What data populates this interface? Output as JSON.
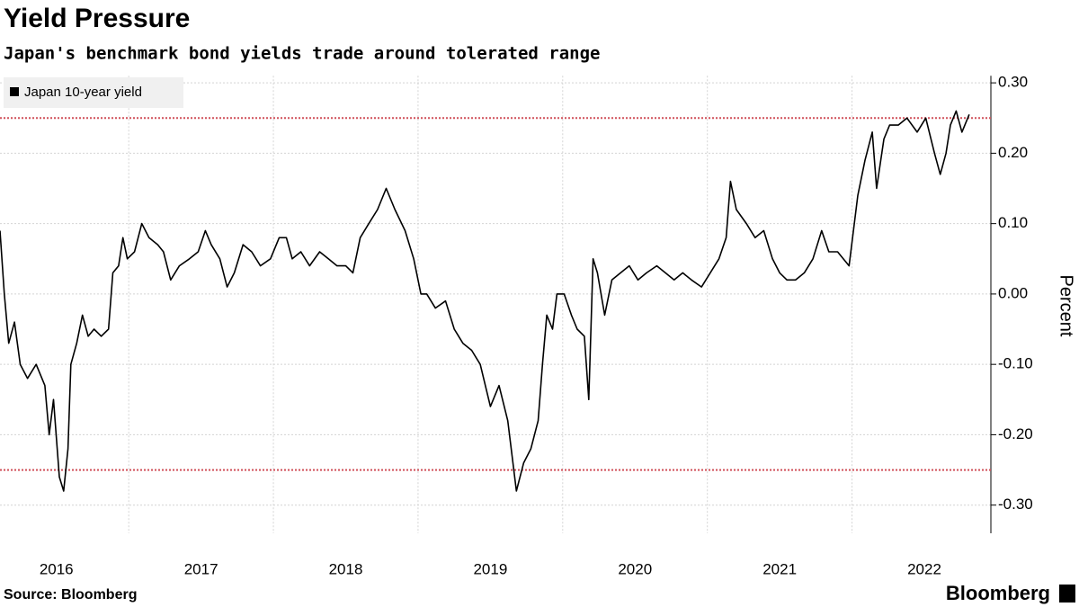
{
  "chart_data": {
    "type": "line",
    "title": "Yield Pressure",
    "subtitle": "Japan's benchmark bond yields trade around tolerated range",
    "y_label": "Percent",
    "source": "Source: Bloomberg",
    "brand": "Bloomberg",
    "x": [
      2016.11,
      2016.14,
      2016.17,
      2016.21,
      2016.25,
      2016.3,
      2016.36,
      2016.42,
      2016.45,
      2016.48,
      2016.52,
      2016.55,
      2016.58,
      2016.6,
      2016.64,
      2016.68,
      2016.72,
      2016.76,
      2016.81,
      2016.86,
      2016.89,
      2016.93,
      2016.96,
      2016.99,
      2017.04,
      2017.09,
      2017.14,
      2017.2,
      2017.24,
      2017.29,
      2017.35,
      2017.42,
      2017.48,
      2017.53,
      2017.57,
      2017.63,
      2017.68,
      2017.73,
      2017.79,
      2017.85,
      2017.91,
      2017.98,
      2018.04,
      2018.09,
      2018.13,
      2018.19,
      2018.25,
      2018.32,
      2018.38,
      2018.44,
      2018.5,
      2018.55,
      2018.6,
      2018.66,
      2018.72,
      2018.78,
      2018.84,
      2018.91,
      2018.97,
      2019.02,
      2019.06,
      2019.12,
      2019.19,
      2019.25,
      2019.31,
      2019.37,
      2019.43,
      2019.5,
      2019.56,
      2019.62,
      2019.65,
      2019.68,
      2019.73,
      2019.78,
      2019.83,
      2019.86,
      2019.89,
      2019.93,
      2019.96,
      2020.01,
      2020.06,
      2020.1,
      2020.15,
      2020.18,
      2020.21,
      2020.24,
      2020.29,
      2020.34,
      2020.4,
      2020.46,
      2020.52,
      2020.58,
      2020.65,
      2020.71,
      2020.77,
      2020.83,
      2020.89,
      2020.96,
      2021.02,
      2021.08,
      2021.13,
      2021.16,
      2021.2,
      2021.27,
      2021.33,
      2021.39,
      2021.45,
      2021.5,
      2021.55,
      2021.61,
      2021.67,
      2021.73,
      2021.79,
      2021.84,
      2021.9,
      2021.98,
      2022.04,
      2022.09,
      2022.14,
      2022.17,
      2022.22,
      2022.26,
      2022.32,
      2022.38,
      2022.45,
      2022.51,
      2022.57,
      2022.61,
      2022.65,
      2022.68,
      2022.72,
      2022.76,
      2022.81
    ],
    "series": [
      {
        "name": "Japan 10-year yield",
        "color": "#000000",
        "values": [
          0.09,
          0.0,
          -0.07,
          -0.04,
          -0.1,
          -0.12,
          -0.1,
          -0.13,
          -0.2,
          -0.15,
          -0.26,
          -0.28,
          -0.22,
          -0.1,
          -0.07,
          -0.03,
          -0.06,
          -0.05,
          -0.06,
          -0.05,
          0.03,
          0.04,
          0.08,
          0.05,
          0.06,
          0.1,
          0.08,
          0.07,
          0.06,
          0.02,
          0.04,
          0.05,
          0.06,
          0.09,
          0.07,
          0.05,
          0.01,
          0.03,
          0.07,
          0.06,
          0.04,
          0.05,
          0.08,
          0.08,
          0.05,
          0.06,
          0.04,
          0.06,
          0.05,
          0.04,
          0.04,
          0.03,
          0.08,
          0.1,
          0.12,
          0.15,
          0.12,
          0.09,
          0.05,
          0.0,
          0.0,
          -0.02,
          -0.01,
          -0.05,
          -0.07,
          -0.08,
          -0.1,
          -0.16,
          -0.13,
          -0.18,
          -0.23,
          -0.28,
          -0.24,
          -0.22,
          -0.18,
          -0.1,
          -0.03,
          -0.05,
          0.0,
          0.0,
          -0.03,
          -0.05,
          -0.06,
          -0.15,
          0.05,
          0.03,
          -0.03,
          0.02,
          0.03,
          0.04,
          0.02,
          0.03,
          0.04,
          0.03,
          0.02,
          0.03,
          0.02,
          0.01,
          0.03,
          0.05,
          0.08,
          0.16,
          0.12,
          0.1,
          0.08,
          0.09,
          0.05,
          0.03,
          0.02,
          0.02,
          0.03,
          0.05,
          0.09,
          0.06,
          0.06,
          0.04,
          0.14,
          0.19,
          0.23,
          0.15,
          0.22,
          0.24,
          0.24,
          0.25,
          0.23,
          0.25,
          0.2,
          0.17,
          0.2,
          0.24,
          0.26,
          0.23,
          0.255
        ]
      }
    ],
    "xlim": [
      2016.11,
      2022.96
    ],
    "ylim": [
      -0.34,
      0.31
    ],
    "xticks": [
      {
        "value": 2016.5,
        "label": "2016"
      },
      {
        "value": 2017.5,
        "label": "2017"
      },
      {
        "value": 2018.5,
        "label": "2018"
      },
      {
        "value": 2019.5,
        "label": "2019"
      },
      {
        "value": 2020.5,
        "label": "2020"
      },
      {
        "value": 2021.5,
        "label": "2021"
      },
      {
        "value": 2022.5,
        "label": "2022"
      }
    ],
    "xgrid": [
      2017,
      2018,
      2019,
      2020,
      2021,
      2022
    ],
    "yticks": [
      {
        "value": 0.3,
        "label": "0.30"
      },
      {
        "value": 0.2,
        "label": "0.20"
      },
      {
        "value": 0.1,
        "label": "0.10"
      },
      {
        "value": 0,
        "label": "0.00"
      },
      {
        "value": -0.1,
        "label": "-0.10"
      },
      {
        "value": -0.2,
        "label": "-0.20"
      },
      {
        "value": -0.3,
        "label": "-0.30"
      }
    ],
    "reference_lines": [
      0.25,
      -0.25
    ],
    "reference_color": "#d0505a",
    "grid": true,
    "legend": "top-left"
  }
}
